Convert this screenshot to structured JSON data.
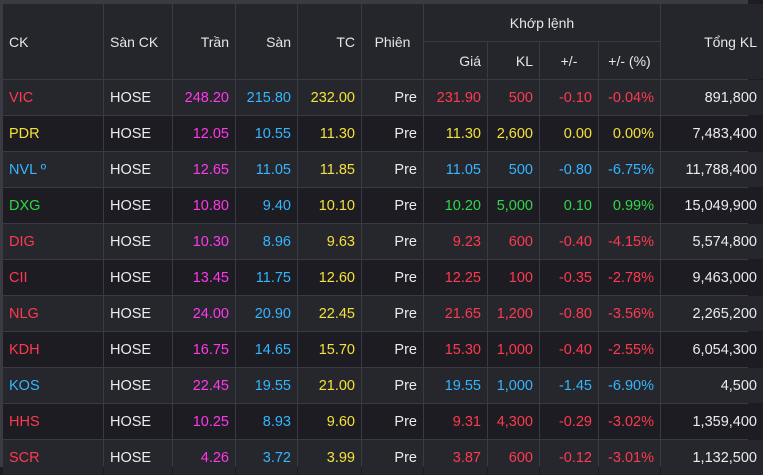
{
  "headers": {
    "ck": "CK",
    "san_ck": "Sàn CK",
    "tran": "Trần",
    "san": "Sàn",
    "tc": "TC",
    "phien": "Phiên",
    "khop_lenh": "Khớp lệnh",
    "gia": "Giá",
    "kl": "KL",
    "change": "+/-",
    "change_pct": "+/- (%)",
    "tong_kl": "Tổng KL"
  },
  "colors": {
    "ceiling": "#ff38e9",
    "floor": "#35b6ff",
    "reference": "#f4e23a",
    "down": "#ff3a4f",
    "up": "#31d74a"
  },
  "rows": [
    {
      "ck": "VIC",
      "san_ck": "HOSE",
      "tran": "248.20",
      "san": "215.80",
      "tc": "232.00",
      "phien": "Pre",
      "gia": "231.90",
      "kl": "500",
      "change": "-0.10",
      "change_pct": "-0.04%",
      "tong_kl": "891,800",
      "status": "red"
    },
    {
      "ck": "PDR",
      "san_ck": "HOSE",
      "tran": "12.05",
      "san": "10.55",
      "tc": "11.30",
      "phien": "Pre",
      "gia": "11.30",
      "kl": "2,600",
      "change": "0.00",
      "change_pct": "0.00%",
      "tong_kl": "7,483,400",
      "status": "yellow"
    },
    {
      "ck": "NVL º",
      "san_ck": "HOSE",
      "tran": "12.65",
      "san": "11.05",
      "tc": "11.85",
      "phien": "Pre",
      "gia": "11.05",
      "kl": "500",
      "change": "-0.80",
      "change_pct": "-6.75%",
      "tong_kl": "11,788,400",
      "status": "cyan"
    },
    {
      "ck": "DXG",
      "san_ck": "HOSE",
      "tran": "10.80",
      "san": "9.40",
      "tc": "10.10",
      "phien": "Pre",
      "gia": "10.20",
      "kl": "5,000",
      "change": "0.10",
      "change_pct": "0.99%",
      "tong_kl": "15,049,900",
      "status": "green"
    },
    {
      "ck": "DIG",
      "san_ck": "HOSE",
      "tran": "10.30",
      "san": "8.96",
      "tc": "9.63",
      "phien": "Pre",
      "gia": "9.23",
      "kl": "600",
      "change": "-0.40",
      "change_pct": "-4.15%",
      "tong_kl": "5,574,800",
      "status": "red"
    },
    {
      "ck": "CII",
      "san_ck": "HOSE",
      "tran": "13.45",
      "san": "11.75",
      "tc": "12.60",
      "phien": "Pre",
      "gia": "12.25",
      "kl": "100",
      "change": "-0.35",
      "change_pct": "-2.78%",
      "tong_kl": "9,463,000",
      "status": "red"
    },
    {
      "ck": "NLG",
      "san_ck": "HOSE",
      "tran": "24.00",
      "san": "20.90",
      "tc": "22.45",
      "phien": "Pre",
      "gia": "21.65",
      "kl": "1,200",
      "change": "-0.80",
      "change_pct": "-3.56%",
      "tong_kl": "2,265,200",
      "status": "red"
    },
    {
      "ck": "KDH",
      "san_ck": "HOSE",
      "tran": "16.75",
      "san": "14.65",
      "tc": "15.70",
      "phien": "Pre",
      "gia": "15.30",
      "kl": "1,000",
      "change": "-0.40",
      "change_pct": "-2.55%",
      "tong_kl": "6,054,300",
      "status": "red"
    },
    {
      "ck": "KOS",
      "san_ck": "HOSE",
      "tran": "22.45",
      "san": "19.55",
      "tc": "21.00",
      "phien": "Pre",
      "gia": "19.55",
      "kl": "1,000",
      "change": "-1.45",
      "change_pct": "-6.90%",
      "tong_kl": "4,500",
      "status": "cyan"
    },
    {
      "ck": "HHS",
      "san_ck": "HOSE",
      "tran": "10.25",
      "san": "8.93",
      "tc": "9.60",
      "phien": "Pre",
      "gia": "9.31",
      "kl": "4,300",
      "change": "-0.29",
      "change_pct": "-3.02%",
      "tong_kl": "1,359,400",
      "status": "red"
    },
    {
      "ck": "SCR",
      "san_ck": "HOSE",
      "tran": "4.26",
      "san": "3.72",
      "tc": "3.99",
      "phien": "Pre",
      "gia": "3.87",
      "kl": "600",
      "change": "-0.12",
      "change_pct": "-3.01%",
      "tong_kl": "1,132,500",
      "status": "red"
    }
  ]
}
